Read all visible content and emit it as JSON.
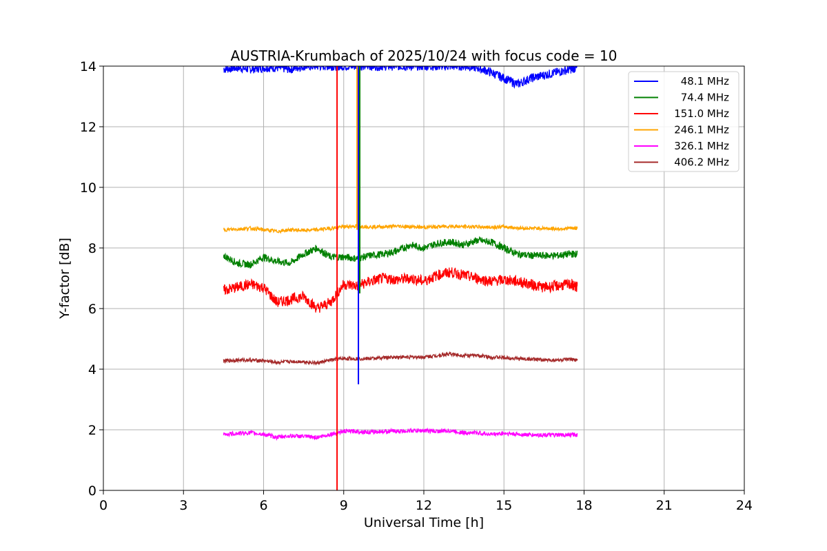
{
  "chart_data": {
    "type": "line",
    "title": "AUSTRIA-Krumbach of 2025/10/24 with focus code = 10",
    "xlabel": "Universal Time [h]",
    "ylabel": "Y-factor [dB]",
    "xlim": [
      0,
      24
    ],
    "ylim": [
      0,
      14
    ],
    "xticks": [
      0,
      3,
      6,
      9,
      12,
      15,
      18,
      21,
      24
    ],
    "yticks": [
      0,
      2,
      4,
      6,
      8,
      10,
      12,
      14
    ],
    "grid": true,
    "legend_position": "top-right",
    "x": [
      4.5,
      5.0,
      5.5,
      6.0,
      6.5,
      7.0,
      7.5,
      8.0,
      8.5,
      9.0,
      9.5,
      10.0,
      10.5,
      11.0,
      11.5,
      12.0,
      12.5,
      13.0,
      13.5,
      14.0,
      14.5,
      15.0,
      15.5,
      16.0,
      16.5,
      17.0,
      17.5,
      17.75
    ],
    "series": [
      {
        "name": "48.1 MHz",
        "color": "#0000ff",
        "values": [
          13.9,
          13.95,
          13.9,
          13.95,
          13.95,
          13.9,
          14.0,
          14.0,
          14.0,
          14.0,
          14.0,
          14.0,
          14.0,
          14.0,
          14.0,
          14.0,
          14.0,
          14.0,
          14.0,
          13.95,
          13.8,
          13.6,
          13.4,
          13.6,
          13.7,
          13.8,
          13.9,
          13.95
        ]
      },
      {
        "name": "74.4 MHz",
        "color": "#008000",
        "values": [
          7.75,
          7.5,
          7.45,
          7.7,
          7.55,
          7.5,
          7.8,
          8.0,
          7.7,
          7.7,
          7.65,
          7.75,
          7.8,
          7.9,
          8.1,
          8.0,
          8.15,
          8.2,
          8.1,
          8.25,
          8.2,
          8.0,
          7.8,
          7.75,
          7.75,
          7.75,
          7.8,
          7.8
        ]
      },
      {
        "name": "151.0 MHz",
        "color": "#ff0000",
        "values": [
          6.6,
          6.7,
          6.8,
          6.7,
          6.2,
          6.3,
          6.4,
          6.0,
          6.2,
          6.8,
          6.75,
          6.9,
          7.0,
          6.95,
          7.0,
          6.9,
          7.1,
          7.2,
          7.1,
          7.0,
          6.9,
          6.95,
          6.9,
          6.8,
          6.7,
          6.75,
          6.8,
          6.7
        ]
      },
      {
        "name": "246.1 MHz",
        "color": "#ffa500",
        "values": [
          8.6,
          8.62,
          8.65,
          8.6,
          8.55,
          8.6,
          8.58,
          8.6,
          8.65,
          8.7,
          8.72,
          8.7,
          8.7,
          8.72,
          8.7,
          8.68,
          8.7,
          8.72,
          8.7,
          8.7,
          8.68,
          8.7,
          8.66,
          8.65,
          8.65,
          8.63,
          8.65,
          8.65
        ]
      },
      {
        "name": "326.1 MHz",
        "color": "#ff00ff",
        "values": [
          1.85,
          1.88,
          1.9,
          1.85,
          1.75,
          1.8,
          1.78,
          1.75,
          1.85,
          1.95,
          1.95,
          1.92,
          1.95,
          1.95,
          1.97,
          1.97,
          1.95,
          1.97,
          1.9,
          1.9,
          1.85,
          1.88,
          1.85,
          1.83,
          1.83,
          1.82,
          1.84,
          1.83
        ]
      },
      {
        "name": "406.2 MHz",
        "color": "#a52a2a",
        "values": [
          4.27,
          4.3,
          4.3,
          4.28,
          4.22,
          4.25,
          4.25,
          4.2,
          4.3,
          4.35,
          4.35,
          4.35,
          4.38,
          4.4,
          4.4,
          4.4,
          4.45,
          4.5,
          4.45,
          4.45,
          4.4,
          4.38,
          4.35,
          4.33,
          4.3,
          4.3,
          4.32,
          4.3
        ]
      }
    ],
    "annotations": [
      {
        "series": "48.1 MHz",
        "x": 9.55,
        "y_min": 3.5,
        "y_max": 14,
        "note": "interference spike"
      },
      {
        "series": "151.0 MHz",
        "x": 8.75,
        "y_min": 0,
        "y_max": 14,
        "note": "interference spike"
      },
      {
        "series": "74.4 MHz",
        "x": 9.6,
        "y_min": 6.5,
        "y_max": 14,
        "note": "interference spike"
      },
      {
        "series": "246.1 MHz",
        "x": 9.5,
        "y_min": 8.6,
        "y_max": 14,
        "note": "interference spike"
      }
    ]
  }
}
